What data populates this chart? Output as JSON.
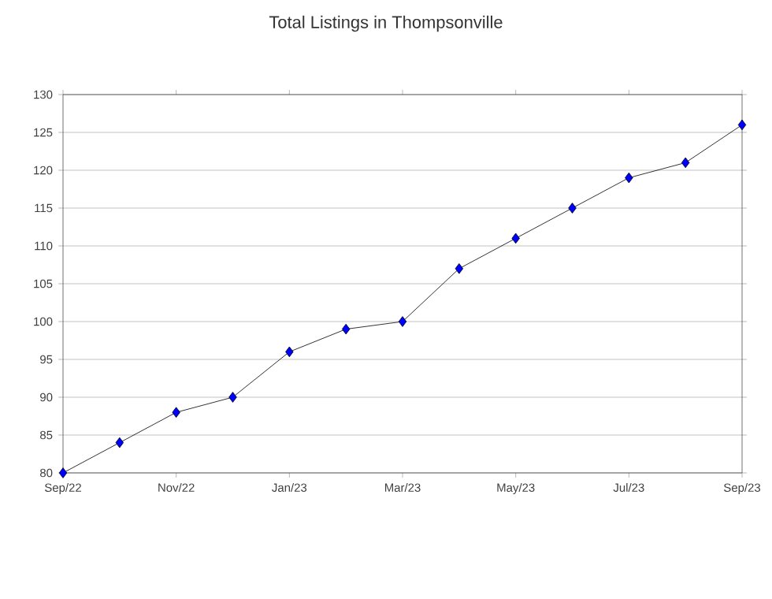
{
  "chart_data": {
    "type": "line",
    "title": "Total Listings in Thompsonville",
    "x": [
      "2022-09",
      "2022-10",
      "2022-11",
      "2022-12",
      "2023-01",
      "2023-02",
      "2023-03",
      "2023-04",
      "2023-05",
      "2023-06",
      "2023-07",
      "2023-08",
      "2023-09"
    ],
    "series": [
      {
        "color": "#0000ff",
        "values": [
          80,
          84,
          88,
          90,
          96,
          99,
          100,
          107,
          111,
          115,
          119,
          121,
          126
        ]
      }
    ],
    "xlim": [
      "2022-09",
      "2023-09"
    ],
    "xticks": [
      {
        "value": "2022-09",
        "label": "Sep/22"
      },
      {
        "value": "2022-11",
        "label": "Nov/22"
      },
      {
        "value": "2023-01",
        "label": "Jan/23"
      },
      {
        "value": "2023-03",
        "label": "Mar/23"
      },
      {
        "value": "2023-05",
        "label": "May/23"
      },
      {
        "value": "2023-07",
        "label": "Jul/23"
      },
      {
        "value": "2023-09",
        "label": "Sep/23"
      }
    ],
    "ylim": [
      80,
      130
    ],
    "yticks": [
      80,
      85,
      90,
      95,
      100,
      105,
      110,
      115,
      120,
      125,
      130
    ],
    "grid": "y",
    "marker": "diamond",
    "line_style": "solid"
  }
}
